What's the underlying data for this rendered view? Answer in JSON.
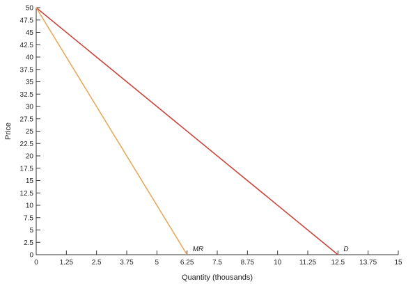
{
  "chart_data": {
    "type": "line",
    "xlabel": "Quantity (thousands)",
    "ylabel": "Price",
    "xlim": [
      0,
      15
    ],
    "ylim": [
      0,
      50
    ],
    "x_ticks": [
      0,
      1.25,
      2.5,
      3.75,
      5,
      6.25,
      7.5,
      8.75,
      10,
      11.25,
      12.5,
      13.75,
      15
    ],
    "x_tick_labels": [
      "0",
      "1.25",
      "2.5",
      "3.75",
      "5",
      "6.25",
      "7.5",
      "8.75",
      "10",
      "11.25",
      "12.5",
      "13.75",
      "15"
    ],
    "y_ticks": [
      0,
      2.5,
      5,
      7.5,
      10,
      12.5,
      15,
      17.5,
      20,
      22.5,
      25,
      27.5,
      30,
      32.5,
      35,
      37.5,
      40,
      42.5,
      45,
      47.5,
      50
    ],
    "y_tick_labels": [
      "0",
      "2.5",
      "5",
      "7.5",
      "10",
      "12.5",
      "15",
      "17.5",
      "20",
      "22.5",
      "25",
      "27.5",
      "30",
      "32.5",
      "35",
      "37.5",
      "40",
      "42.5",
      "45",
      "47.5",
      "50"
    ],
    "grid": false,
    "series": [
      {
        "name": "D",
        "color": "#c8443a",
        "x": [
          0,
          12.5
        ],
        "y": [
          50,
          0
        ]
      },
      {
        "name": "MR",
        "color": "#e8a85a",
        "x": [
          0,
          6.25
        ],
        "y": [
          50,
          0
        ]
      }
    ]
  }
}
